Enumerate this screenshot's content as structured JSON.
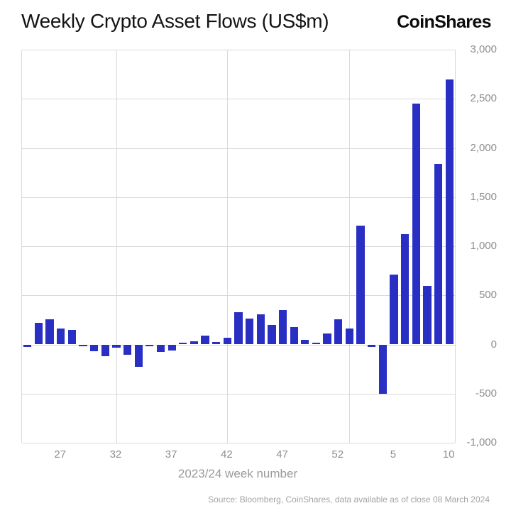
{
  "header": {
    "title": "Weekly Crypto Asset Flows (US$m)",
    "logo_text": "CoinShares"
  },
  "chart_data": {
    "type": "bar",
    "title": "Weekly Crypto Asset Flows (US$m)",
    "xlabel": "2023/24 week number",
    "ylabel": "",
    "ylim": [
      -1000,
      3000
    ],
    "ytick_step": 500,
    "ytick_labels": [
      "3,000",
      "2,500",
      "2,000",
      "1,500",
      "1,000",
      "500",
      "0",
      "-500",
      "-1,000"
    ],
    "categories": [
      "24",
      "25",
      "26",
      "27",
      "28",
      "29",
      "30",
      "31",
      "32",
      "33",
      "34",
      "35",
      "36",
      "37",
      "38",
      "39",
      "40",
      "41",
      "42",
      "43",
      "44",
      "45",
      "46",
      "47",
      "48",
      "49",
      "50",
      "51",
      "52",
      "1",
      "2",
      "3",
      "4",
      "5",
      "6",
      "7",
      "8",
      "9",
      "10"
    ],
    "values": [
      -25,
      220,
      255,
      160,
      150,
      -15,
      -65,
      -120,
      -35,
      -105,
      -230,
      -15,
      -75,
      -60,
      15,
      35,
      90,
      25,
      70,
      330,
      260,
      305,
      200,
      350,
      180,
      45,
      20,
      110,
      255,
      160,
      1210,
      -25,
      -500,
      708,
      1120,
      2450,
      598,
      1840,
      2700
    ],
    "xticks": [
      {
        "label": "27",
        "index": 3
      },
      {
        "label": "32",
        "index": 8
      },
      {
        "label": "37",
        "index": 13
      },
      {
        "label": "42",
        "index": 18
      },
      {
        "label": "47",
        "index": 23
      },
      {
        "label": "52",
        "index": 28
      },
      {
        "label": "5",
        "index": 33
      },
      {
        "label": "10",
        "index": 38
      }
    ],
    "vgrid_indices": [
      8,
      18,
      29
    ],
    "bar_color": "#2a2fc4",
    "grid_color": "#d9d9d9",
    "axis_text_color": "#8e8e8e",
    "legend": "none",
    "grid": "on"
  },
  "footer": {
    "source": "Source: Bloomberg, CoinShares, data available as of close 08 March 2024"
  }
}
